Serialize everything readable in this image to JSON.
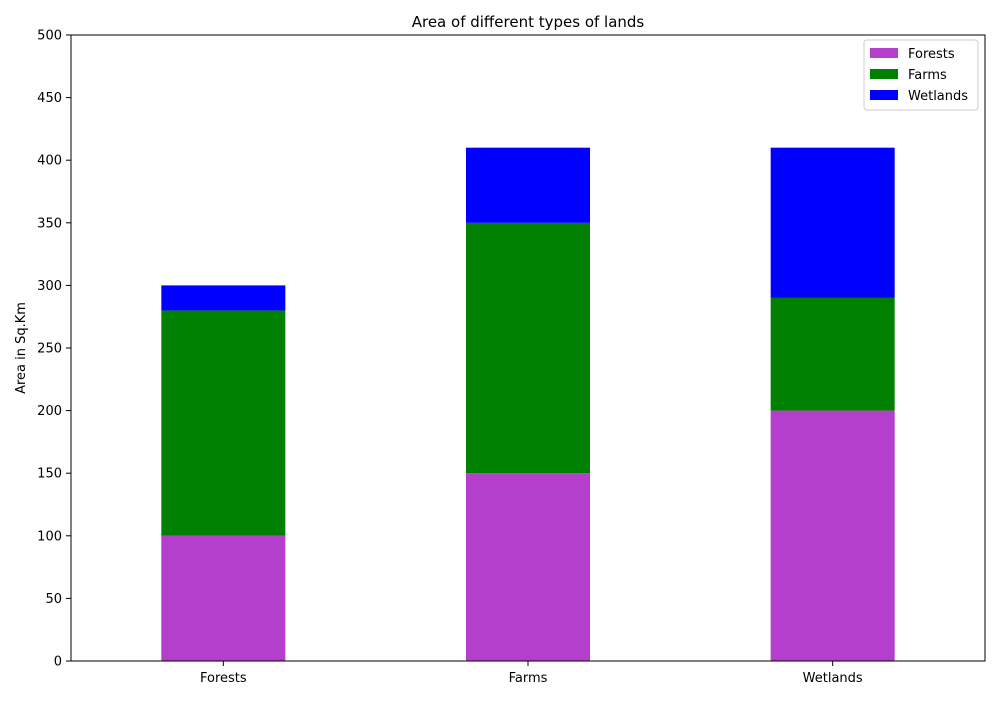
{
  "chart_data": {
    "type": "bar",
    "stacked": true,
    "title": "Area of different types of lands",
    "xlabel": "",
    "ylabel": "Area in Sq.Km",
    "categories": [
      "Forests",
      "Farms",
      "Wetlands"
    ],
    "ylim": [
      0,
      500
    ],
    "yticks": [
      0,
      50,
      100,
      150,
      200,
      250,
      300,
      350,
      400,
      450,
      500
    ],
    "grid": false,
    "legend_position": "top-right",
    "series": [
      {
        "name": "Forests",
        "color": "#b33fcc",
        "values": [
          100,
          150,
          200
        ]
      },
      {
        "name": "Farms",
        "color": "#008000",
        "values": [
          180,
          200,
          90
        ]
      },
      {
        "name": "Wetlands",
        "color": "#0000ff",
        "values": [
          20,
          60,
          120
        ]
      }
    ]
  }
}
